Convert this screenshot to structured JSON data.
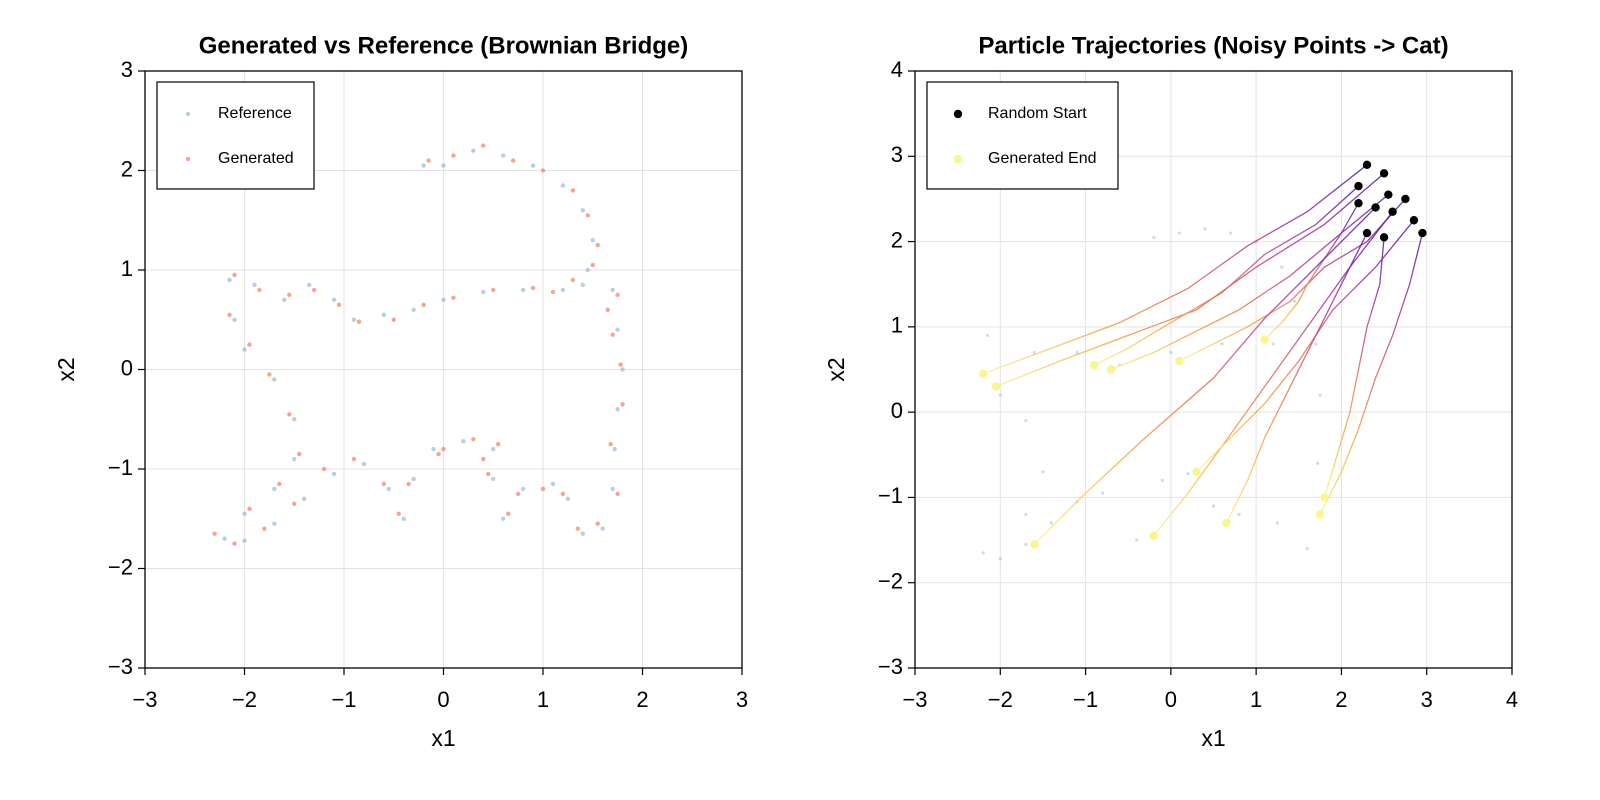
{
  "chart_data": [
    {
      "type": "scatter",
      "title": "Generated vs Reference (Brownian Bridge)",
      "x_label": "x1",
      "y_label": "x2",
      "xlim": [
        -3,
        3
      ],
      "ylim": [
        -3,
        3
      ],
      "xticks": [
        {
          "value": -3,
          "label": "−3"
        },
        {
          "value": -2,
          "label": "−2"
        },
        {
          "value": -1,
          "label": "−1"
        },
        0,
        1,
        2,
        3
      ],
      "yticks": [
        {
          "value": -3,
          "label": "−3"
        },
        {
          "value": -2,
          "label": "−2"
        },
        {
          "value": -1,
          "label": "−1"
        },
        0,
        1,
        2,
        3
      ],
      "grid": true,
      "legend": "upper left",
      "series": [
        {
          "name": "Reference",
          "color": "#8fb5d6",
          "x": [
            -0.2,
            0.0,
            0.3,
            0.6,
            0.9,
            1.2,
            1.4,
            1.5,
            1.45,
            1.7,
            1.75,
            1.8,
            1.75,
            1.72,
            1.7,
            1.6,
            1.4,
            1.25,
            1.1,
            0.8,
            0.6,
            0.5,
            0.5,
            0.2,
            -0.1,
            -0.3,
            -0.4,
            -0.55,
            -0.8,
            -1.1,
            -1.4,
            -1.7,
            -2.0,
            -2.2,
            -2.0,
            -1.7,
            -1.5,
            -1.5,
            -1.7,
            -2.0,
            -2.1,
            -2.15,
            -1.9,
            -1.6,
            -1.35,
            -1.1,
            -0.9,
            -0.6,
            -0.3,
            0.0,
            0.4,
            0.8,
            1.2,
            1.4
          ],
          "y": [
            2.05,
            2.05,
            2.2,
            2.15,
            2.05,
            1.85,
            1.6,
            1.3,
            1.0,
            0.8,
            0.4,
            0.0,
            -0.4,
            -0.8,
            -1.2,
            -1.6,
            -1.65,
            -1.3,
            -1.15,
            -1.2,
            -1.5,
            -1.1,
            -0.8,
            -0.72,
            -0.8,
            -1.1,
            -1.5,
            -1.2,
            -0.95,
            -1.05,
            -1.3,
            -1.55,
            -1.72,
            -1.7,
            -1.45,
            -1.2,
            -0.9,
            -0.5,
            -0.1,
            0.2,
            0.5,
            0.9,
            0.85,
            0.7,
            0.85,
            0.7,
            0.5,
            0.55,
            0.6,
            0.7,
            0.78,
            0.8,
            0.8,
            0.85
          ]
        },
        {
          "name": "Generated",
          "color": "#f4715a",
          "x": [
            -0.15,
            0.1,
            0.4,
            0.7,
            1.0,
            1.3,
            1.45,
            1.55,
            1.5,
            1.75,
            1.7,
            1.78,
            1.8,
            1.68,
            1.75,
            1.55,
            1.35,
            1.2,
            1.0,
            0.75,
            0.65,
            0.45,
            0.55,
            0.3,
            -0.05,
            -0.35,
            -0.45,
            -0.6,
            -0.9,
            -1.2,
            -1.5,
            -1.8,
            -2.1,
            -2.3,
            -1.95,
            -1.65,
            -1.45,
            -1.55,
            -1.75,
            -1.95,
            -2.15,
            -2.1,
            -1.85,
            -1.55,
            -1.3,
            -1.05,
            -0.85,
            -0.5,
            -0.2,
            0.1,
            0.5,
            0.9,
            1.1,
            1.3,
            1.65,
            0.0,
            0.4
          ],
          "y": [
            2.1,
            2.15,
            2.25,
            2.1,
            2.0,
            1.8,
            1.55,
            1.25,
            1.05,
            0.75,
            0.35,
            0.05,
            -0.35,
            -0.75,
            -1.25,
            -1.55,
            -1.6,
            -1.25,
            -1.2,
            -1.25,
            -1.45,
            -1.05,
            -0.75,
            -0.7,
            -0.85,
            -1.15,
            -1.45,
            -1.15,
            -0.9,
            -1.0,
            -1.35,
            -1.6,
            -1.75,
            -1.65,
            -1.4,
            -1.15,
            -0.85,
            -0.45,
            -0.05,
            0.25,
            0.55,
            0.95,
            0.8,
            0.75,
            0.8,
            0.65,
            0.48,
            0.5,
            0.65,
            0.72,
            0.8,
            0.82,
            0.78,
            0.9,
            0.6,
            -0.8,
            -0.9
          ]
        }
      ]
    },
    {
      "type": "trajectories",
      "title": "Particle Trajectories (Noisy Points -> Cat)",
      "x_label": "x1",
      "y_label": "x2",
      "xlim": [
        -3,
        4
      ],
      "ylim": [
        -3,
        4
      ],
      "xticks": [
        {
          "value": -3,
          "label": "−3"
        },
        {
          "value": -2,
          "label": "−2"
        },
        {
          "value": -1,
          "label": "−1"
        },
        0,
        1,
        2,
        3,
        4
      ],
      "yticks": [
        {
          "value": -3,
          "label": "−3"
        },
        {
          "value": -2,
          "label": "−2"
        },
        {
          "value": -1,
          "label": "−1"
        },
        0,
        1,
        2,
        3,
        4
      ],
      "grid": true,
      "legend": "upper left",
      "colormap": [
        "#4b12a6",
        "#a42e9a",
        "#e0665a",
        "#f9a83a",
        "#f8f68e"
      ],
      "background": {
        "color": "#9fb8cf",
        "x": [
          -0.2,
          0.1,
          0.4,
          0.7,
          1.0,
          1.3,
          1.45,
          1.7,
          1.75,
          1.72,
          1.6,
          1.25,
          0.8,
          0.5,
          0.2,
          -0.1,
          -0.4,
          -0.8,
          -1.1,
          -1.4,
          -1.7,
          -2.0,
          -2.2,
          -1.7,
          -1.5,
          -1.7,
          -2.0,
          -2.15,
          -1.6,
          -1.1,
          -0.6,
          0.0,
          0.6,
          1.2
        ],
        "y": [
          2.05,
          2.1,
          2.15,
          2.1,
          2.0,
          1.7,
          1.3,
          0.8,
          0.2,
          -0.6,
          -1.6,
          -1.3,
          -1.2,
          -1.1,
          -0.72,
          -0.8,
          -1.5,
          -0.95,
          -1.05,
          -1.3,
          -1.55,
          -1.72,
          -1.65,
          -1.2,
          -0.7,
          -0.1,
          0.2,
          0.9,
          0.7,
          0.7,
          0.55,
          0.7,
          0.8,
          0.8
        ]
      },
      "trajectories": [
        {
          "x": [
            2.3,
            1.6,
            0.9,
            0.2,
            -0.6,
            -1.4,
            -2.2
          ],
          "y": [
            2.9,
            2.35,
            1.95,
            1.45,
            1.05,
            0.75,
            0.45
          ]
        },
        {
          "x": [
            2.5,
            1.8,
            1.0,
            0.3,
            -0.5,
            -1.3,
            -2.05
          ],
          "y": [
            2.8,
            2.2,
            1.7,
            1.2,
            0.9,
            0.6,
            0.3
          ]
        },
        {
          "x": [
            2.2,
            1.7,
            1.1,
            0.6,
            0.0,
            -0.5,
            -0.9
          ],
          "y": [
            2.65,
            2.2,
            1.85,
            1.4,
            1.05,
            0.75,
            0.55
          ]
        },
        {
          "x": [
            2.55,
            2.0,
            1.4,
            0.8,
            0.3,
            -0.2,
            -0.7
          ],
          "y": [
            2.55,
            2.1,
            1.6,
            1.2,
            0.95,
            0.7,
            0.5
          ]
        },
        {
          "x": [
            2.75,
            2.3,
            1.8,
            1.4,
            0.9,
            0.5,
            0.1
          ],
          "y": [
            2.5,
            2.0,
            1.7,
            1.3,
            1.0,
            0.8,
            0.6
          ]
        },
        {
          "x": [
            2.2,
            2.0,
            1.8,
            1.6,
            1.5,
            1.3,
            1.1
          ],
          "y": [
            2.45,
            2.1,
            1.8,
            1.5,
            1.3,
            1.05,
            0.85
          ]
        },
        {
          "x": [
            2.4,
            1.8,
            1.1,
            0.5,
            -0.3,
            -1.0,
            -1.6
          ],
          "y": [
            2.4,
            1.8,
            1.1,
            0.4,
            -0.3,
            -0.95,
            -1.55
          ]
        },
        {
          "x": [
            2.6,
            2.1,
            1.6,
            1.1,
            0.6,
            0.2,
            -0.2
          ],
          "y": [
            2.35,
            1.7,
            1.0,
            0.3,
            -0.4,
            -0.95,
            -1.45
          ]
        },
        {
          "x": [
            2.85,
            2.4,
            1.9,
            1.5,
            1.1,
            0.7,
            0.3
          ],
          "y": [
            2.25,
            1.7,
            1.2,
            0.6,
            0.1,
            -0.3,
            -0.7
          ]
        },
        {
          "x": [
            2.3,
            2.0,
            1.7,
            1.4,
            1.1,
            0.9,
            0.65
          ],
          "y": [
            2.1,
            1.5,
            0.9,
            0.3,
            -0.3,
            -0.8,
            -1.3
          ]
        },
        {
          "x": [
            2.5,
            2.45,
            2.3,
            2.2,
            2.1,
            1.95,
            1.8
          ],
          "y": [
            2.05,
            1.5,
            1.0,
            0.5,
            0.0,
            -0.5,
            -1.0
          ]
        },
        {
          "x": [
            2.95,
            2.8,
            2.6,
            2.4,
            2.2,
            2.0,
            1.75
          ],
          "y": [
            2.1,
            1.5,
            0.9,
            0.4,
            -0.2,
            -0.7,
            -1.2
          ]
        }
      ],
      "series": [
        {
          "name": "Random Start",
          "color": "#000000",
          "x": [
            2.3,
            2.5,
            2.2,
            2.55,
            2.75,
            2.2,
            2.4,
            2.6,
            2.85,
            2.3,
            2.5,
            2.95
          ],
          "y": [
            2.9,
            2.8,
            2.65,
            2.55,
            2.5,
            2.45,
            2.4,
            2.35,
            2.25,
            2.1,
            2.05,
            2.1
          ]
        },
        {
          "name": "Generated End",
          "color": "#f8f68e",
          "x": [
            -2.2,
            -2.05,
            -0.9,
            -0.7,
            0.1,
            1.1,
            -1.6,
            -0.2,
            0.3,
            0.65,
            1.8,
            1.75
          ],
          "y": [
            0.45,
            0.3,
            0.55,
            0.5,
            0.6,
            0.85,
            -1.55,
            -1.45,
            -0.7,
            -1.3,
            -1.0,
            -1.2
          ]
        }
      ]
    }
  ]
}
